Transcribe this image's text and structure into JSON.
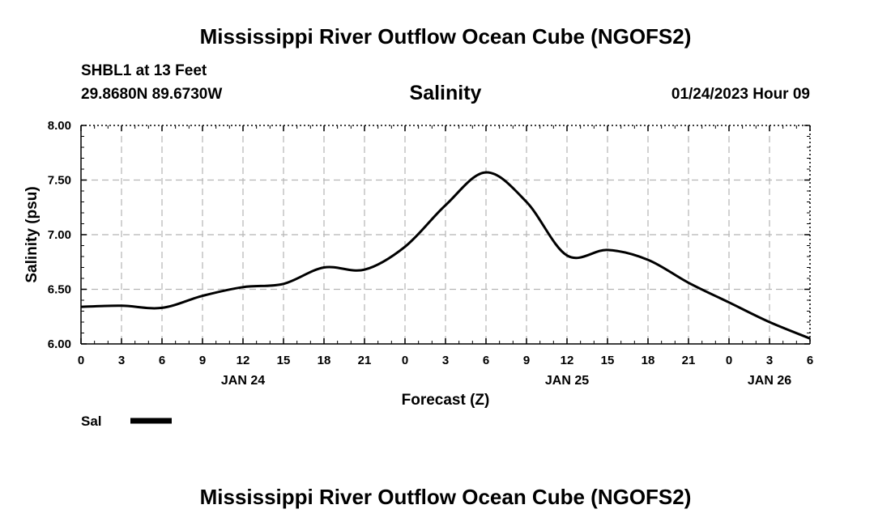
{
  "header": {
    "title": "Mississippi River Outflow Ocean Cube (NGOFS2)",
    "station": "SHBL1 at 13 Feet",
    "coordinates": "29.8680N  89.6730W",
    "datetime": "01/24/2023 Hour 09"
  },
  "footer": {
    "title": "Mississippi River Outflow Ocean Cube (NGOFS2)"
  },
  "chart_data": {
    "type": "line",
    "title": "Salinity",
    "xlabel": "Forecast (Z)",
    "ylabel": "Salinity (psu)",
    "ylim": [
      6.0,
      8.0
    ],
    "xlim": [
      0,
      54
    ],
    "grid": true,
    "yticks": [
      "6.00",
      "6.50",
      "7.00",
      "7.50",
      "8.00"
    ],
    "xticks": [
      "0",
      "3",
      "6",
      "9",
      "12",
      "15",
      "18",
      "21",
      "0",
      "3",
      "6",
      "9",
      "12",
      "15",
      "18",
      "21",
      "0",
      "3",
      "6"
    ],
    "date_labels": [
      {
        "label": "JAN 24",
        "x": 12
      },
      {
        "label": "JAN 25",
        "x": 36
      },
      {
        "label": "JAN 26",
        "x": 51
      }
    ],
    "series": [
      {
        "name": "Sal",
        "color": "#000000",
        "x": [
          0,
          3,
          6,
          9,
          12,
          15,
          18,
          21,
          24,
          27,
          30,
          33,
          36,
          39,
          42,
          45,
          48,
          51,
          54
        ],
        "values": [
          6.34,
          6.35,
          6.33,
          6.44,
          6.52,
          6.55,
          6.7,
          6.68,
          6.89,
          7.27,
          7.57,
          7.3,
          6.81,
          6.86,
          6.77,
          6.56,
          6.38,
          6.2,
          6.05
        ]
      }
    ]
  }
}
